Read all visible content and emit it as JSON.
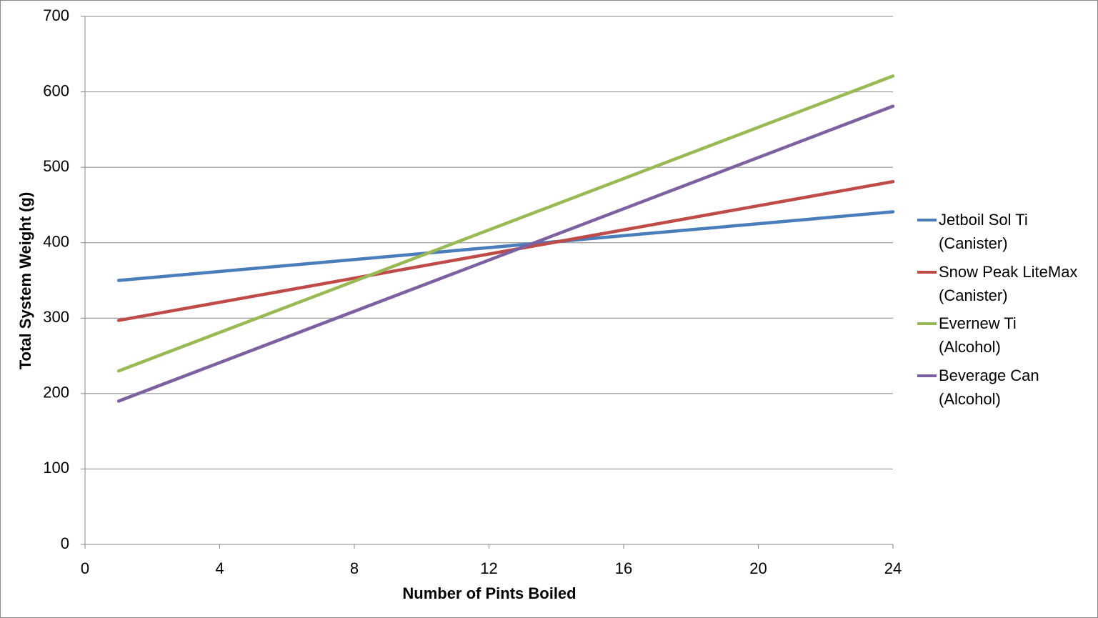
{
  "chart_data": {
    "type": "line",
    "x_label": "Number of Pints Boiled",
    "y_label": "Total System Weight (g)",
    "x": [
      1,
      24
    ],
    "series": [
      {
        "name": "Jetboil Sol Ti\n(Canister)",
        "color": "#4a7ebb",
        "values": [
          350,
          441
        ]
      },
      {
        "name": "Snow Peak LiteMax\n(Canister)",
        "color": "#be4b48",
        "values": [
          297,
          481
        ]
      },
      {
        "name": "Evernew Ti\n(Alcohol)",
        "color": "#98b954",
        "values": [
          230,
          621
        ]
      },
      {
        "name": "Beverage Can\n(Alcohol)",
        "color": "#7d60a0",
        "values": [
          190,
          581
        ]
      }
    ],
    "xlim": [
      0,
      24
    ],
    "xticks": [
      0,
      4,
      8,
      12,
      16,
      20,
      24
    ],
    "ylim": [
      0,
      700
    ],
    "yticks": [
      0,
      100,
      200,
      300,
      400,
      500,
      600,
      700
    ],
    "grid": true,
    "legend": "right"
  }
}
